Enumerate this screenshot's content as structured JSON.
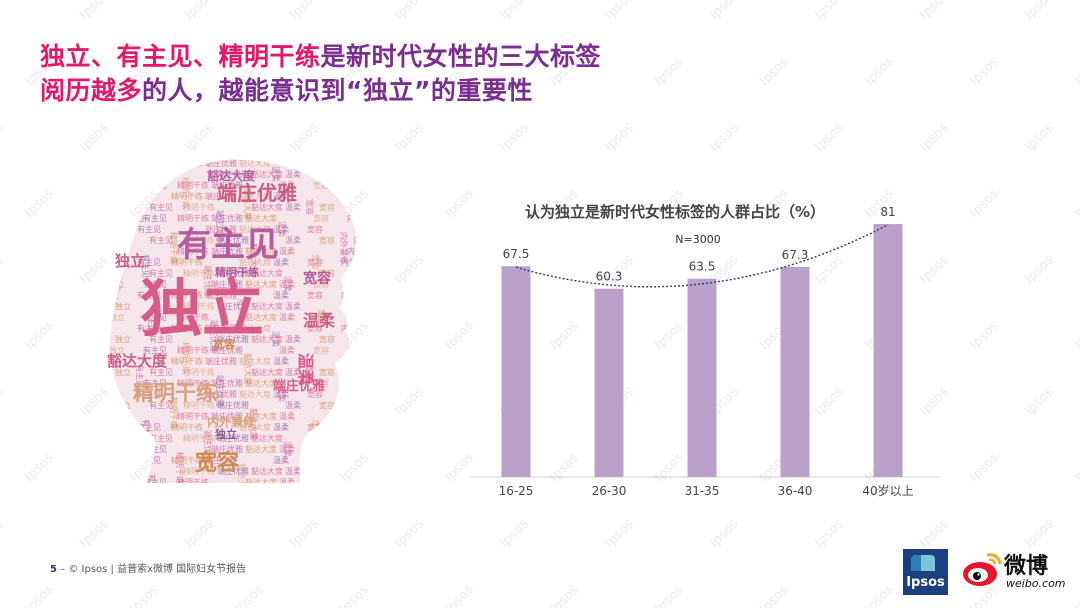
{
  "title": {
    "line1_highlight": "独立、有主见、精明干练",
    "line1_rest": "是新时代女性的三大标签",
    "line2_highlight": "阅历越多",
    "line2_rest": "的人，越能意识到“独立”的重要性"
  },
  "watermark_text": "Ipsos",
  "word_cloud": {
    "words": [
      "独立",
      "有主见",
      "精明干练",
      "端庄优雅",
      "豁达大度",
      "温柔",
      "宽容",
      "内外兼修"
    ],
    "colors": [
      "#d85c8a",
      "#b85a9e",
      "#cf8a52",
      "#c95f87",
      "#d9a07b",
      "#8f5a99"
    ]
  },
  "chart_data": {
    "type": "bar",
    "title": "认为独立是新时代女性标签的人群占比（%）",
    "subtitle": "N=3000",
    "categories": [
      "16-25",
      "26-30",
      "31-35",
      "36-40",
      "40岁以上"
    ],
    "values": [
      67.5,
      60.3,
      63.5,
      67.3,
      81
    ],
    "ylim": [
      0,
      85
    ],
    "bar_color": "#b9a1c9",
    "trendline": true,
    "trendline_color": "#2a3a78",
    "grid": false,
    "legend": "none"
  },
  "footer": {
    "page": "5",
    "separator": "–",
    "text": "© Ipsos | 益普索x微博 国际妇女节报告"
  },
  "logos": {
    "ipsos_text": "Ipsos",
    "weibo_cn": "微博",
    "weibo_en": "weibo.com"
  }
}
